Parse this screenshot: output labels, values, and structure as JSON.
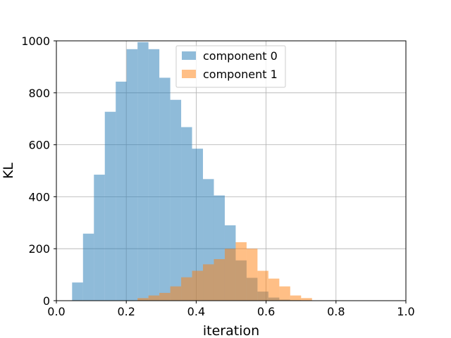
{
  "chart_data": {
    "type": "histogram",
    "title": "",
    "xlabel": "iteration",
    "ylabel": "KL",
    "xlim": [
      0.0,
      1.0
    ],
    "ylim": [
      0,
      1000
    ],
    "xticks": [
      "0.0",
      "0.2",
      "0.4",
      "0.6",
      "0.8",
      "1.0"
    ],
    "yticks": [
      "0",
      "200",
      "400",
      "600",
      "800",
      "1000"
    ],
    "grid": true,
    "legend_position": "top-center",
    "series": [
      {
        "name": "component 0",
        "color": "#1f77b4",
        "opacity": 0.5,
        "bin_edges": [
          0.045,
          0.0762,
          0.1074,
          0.1386,
          0.1698,
          0.201,
          0.2322,
          0.2634,
          0.2946,
          0.3258,
          0.357,
          0.3882,
          0.4194,
          0.4506,
          0.4818,
          0.513,
          0.5442,
          0.5754,
          0.6066,
          0.6378,
          0.669,
          0.7002,
          0.7314,
          0.7626,
          0.7938,
          0.825,
          0.8562,
          0.8874,
          0.9186,
          0.9498
        ],
        "counts": [
          70,
          258,
          485,
          727,
          843,
          968,
          995,
          968,
          858,
          773,
          668,
          585,
          468,
          405,
          290,
          155,
          88,
          35,
          12,
          4,
          2,
          1,
          0,
          0,
          0,
          0,
          0,
          0,
          0
        ]
      },
      {
        "name": "component 1",
        "color": "#ff7f0e",
        "opacity": 0.5,
        "bin_edges": [
          0.045,
          0.0762,
          0.1074,
          0.1386,
          0.1698,
          0.201,
          0.2322,
          0.2634,
          0.2946,
          0.3258,
          0.357,
          0.3882,
          0.4194,
          0.4506,
          0.4818,
          0.513,
          0.5442,
          0.5754,
          0.6066,
          0.6378,
          0.669,
          0.7002,
          0.7314,
          0.7626,
          0.7938,
          0.825,
          0.8562,
          0.8874,
          0.9186,
          0.9498,
          0.981
        ],
        "counts": [
          0,
          0,
          0,
          0,
          0,
          0,
          10,
          20,
          30,
          55,
          90,
          115,
          140,
          160,
          200,
          225,
          200,
          115,
          85,
          55,
          20,
          10,
          0,
          0,
          0,
          0,
          0,
          0,
          0,
          0
        ]
      }
    ]
  }
}
